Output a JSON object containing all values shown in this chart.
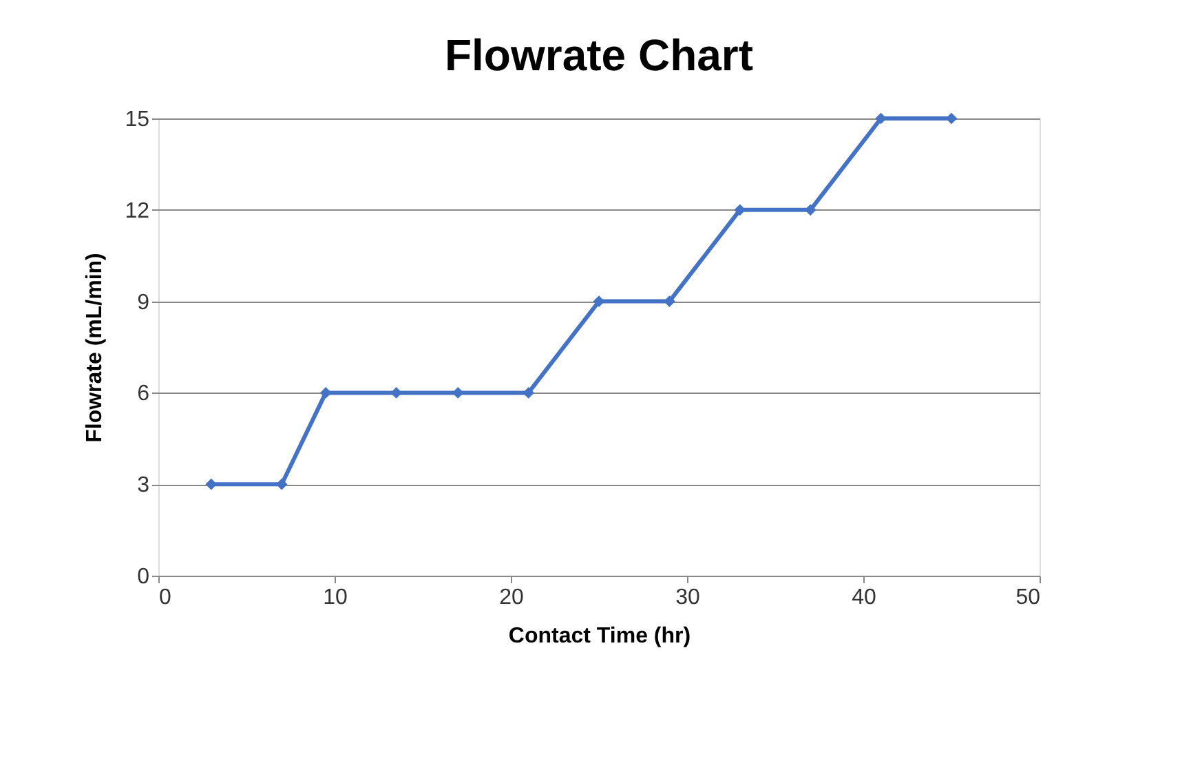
{
  "chart_data": {
    "type": "line",
    "title": "Flowrate Chart",
    "xlabel": "Contact Time (hr)",
    "ylabel": "Flowrate (mL/min)",
    "x": [
      3,
      7,
      9.5,
      13.5,
      17,
      21,
      25,
      29,
      33,
      37,
      41,
      45
    ],
    "series": [
      {
        "color": "#4472c4",
        "values": [
          3,
          3,
          6,
          6,
          6,
          6,
          9,
          9,
          12,
          12,
          15,
          15
        ]
      }
    ],
    "xlim": [
      0,
      50
    ],
    "xticks": [
      0,
      10,
      20,
      30,
      40,
      50
    ],
    "ylim": [
      0,
      15
    ],
    "yticks": [
      0,
      3,
      6,
      9,
      12,
      15
    ],
    "grid": "y",
    "marker": "diamond",
    "line_style": "solid"
  }
}
